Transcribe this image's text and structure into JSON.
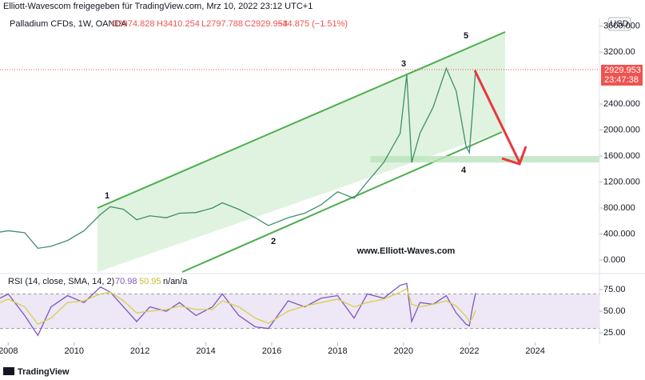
{
  "chart_data": [
    {
      "type": "line",
      "title": "Elliott-Wavescom freigegeben für TradingView.com, Mrz 10, 2022 23:12 UTC+1",
      "subtitle": "Palladium CFDs, 1W, OANDA",
      "ohlc_labels": [
        "O2974.828",
        "H3410.254",
        "L2797.788",
        "C2929.953",
        "−44.875 (−1.51%)"
      ],
      "currency": "USD",
      "last_price": {
        "value": 2929.953,
        "label": "2929.953"
      },
      "countdown": "23:47:38",
      "annotations": [
        "1",
        "2",
        "3",
        "4",
        "5",
        "www.Elliott-Waves.com"
      ],
      "zone": [
        1500,
        1600
      ],
      "xlim": [
        2007.75,
        2025.95
      ],
      "ylim": [
        -185,
        3730
      ],
      "yticks": [
        {
          "value": 0,
          "label": "0.000"
        },
        {
          "value": 400,
          "label": "400.000"
        },
        {
          "value": 800,
          "label": "800.000"
        },
        {
          "value": 1200,
          "label": "1200.000"
        },
        {
          "value": 1600,
          "label": "1600.000"
        },
        {
          "value": 2000,
          "label": "2000.000"
        },
        {
          "value": 2400,
          "label": "2400.000"
        },
        {
          "value": 3200,
          "label": "3200.00"
        },
        {
          "value": 3600,
          "label": "3600.000"
        }
      ],
      "x": [
        2007.75,
        2008.0,
        2008.5,
        2008.9,
        2009.3,
        2009.8,
        2010.3,
        2010.8,
        2011.1,
        2011.5,
        2011.9,
        2012.3,
        2012.8,
        2013.2,
        2013.7,
        2014.2,
        2014.5,
        2015.0,
        2015.5,
        2015.9,
        2016.5,
        2017.0,
        2017.5,
        2018.0,
        2018.5,
        2018.9,
        2019.4,
        2019.9,
        2020.1,
        2020.25,
        2020.5,
        2020.9,
        2021.3,
        2021.6,
        2021.9,
        2022.0,
        2022.1,
        2022.19
      ],
      "series": [
        {
          "name": "Palladium",
          "color": "#3f8f6c",
          "values": [
            430,
            450,
            420,
            180,
            210,
            300,
            450,
            700,
            820,
            780,
            620,
            680,
            650,
            720,
            730,
            800,
            880,
            780,
            650,
            530,
            650,
            720,
            850,
            1050,
            950,
            1200,
            1500,
            1950,
            2850,
            1500,
            1950,
            2350,
            2950,
            2600,
            1750,
            1650,
            2300,
            2929.953
          ]
        }
      ]
    },
    {
      "type": "line",
      "title": "RSI (14, close, SMA, 14, 2)",
      "readouts": [
        "70.98",
        "50.95",
        "n/a",
        "n/a"
      ],
      "band": [
        30,
        70
      ],
      "xlim": [
        2007.75,
        2025.95
      ],
      "ylim": [
        16.7,
        90.7
      ],
      "yticks": [
        {
          "value": 25,
          "label": "25.00"
        },
        {
          "value": 50,
          "label": "50.00"
        },
        {
          "value": 75,
          "label": "75.00"
        }
      ],
      "xticks": [
        2008,
        2010,
        2012,
        2014,
        2016,
        2018,
        2020,
        2022,
        2024
      ],
      "x": [
        2007.75,
        2008.0,
        2008.5,
        2008.9,
        2009.3,
        2009.8,
        2010.3,
        2010.8,
        2011.1,
        2011.5,
        2011.9,
        2012.3,
        2012.8,
        2013.2,
        2013.7,
        2014.2,
        2014.5,
        2015.0,
        2015.5,
        2015.9,
        2016.5,
        2017.0,
        2017.5,
        2018.0,
        2018.5,
        2018.9,
        2019.4,
        2019.9,
        2020.1,
        2020.25,
        2020.5,
        2020.9,
        2021.3,
        2021.6,
        2021.9,
        2022.0,
        2022.1,
        2022.19
      ],
      "series": [
        {
          "name": "RSI",
          "color": "#7e57c2",
          "values": [
            65,
            70,
            45,
            22,
            55,
            68,
            60,
            78,
            72,
            55,
            38,
            55,
            50,
            60,
            45,
            55,
            70,
            45,
            32,
            30,
            62,
            55,
            65,
            68,
            42,
            70,
            65,
            80,
            82,
            38,
            60,
            58,
            68,
            48,
            35,
            33,
            55,
            70.98
          ]
        },
        {
          "name": "SMA",
          "color": "#d9cf4a",
          "values": [
            60,
            64,
            55,
            35,
            42,
            60,
            62,
            70,
            72,
            62,
            48,
            50,
            52,
            56,
            52,
            52,
            62,
            55,
            42,
            36,
            50,
            56,
            60,
            64,
            55,
            60,
            64,
            72,
            76,
            58,
            55,
            58,
            62,
            56,
            44,
            38,
            42,
            50.95
          ]
        }
      ]
    }
  ]
}
